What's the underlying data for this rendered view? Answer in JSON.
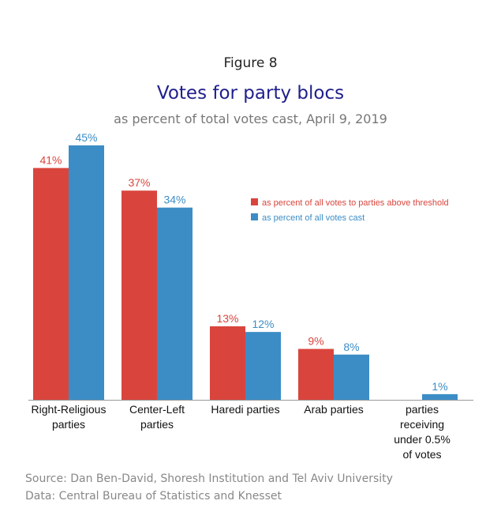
{
  "figure_label": "Figure 8",
  "chart_data": {
    "type": "bar",
    "title": "Votes for party blocs",
    "subtitle": "as percent of total votes cast, April 9, 2019",
    "categories": [
      [
        "Right-Religious",
        "parties"
      ],
      [
        "Center-Left",
        "parties"
      ],
      [
        "Haredi parties"
      ],
      [
        "Arab parties"
      ],
      [
        "parties",
        "receiving",
        "under 0.5%",
        "of votes"
      ]
    ],
    "series": [
      {
        "name": "as percent of all votes to parties above threshold",
        "color": "#d9453d",
        "values": [
          41,
          37,
          13,
          9,
          null
        ],
        "labels": [
          "41%",
          "37%",
          "13%",
          "9%",
          ""
        ]
      },
      {
        "name": "as percent of all votes cast",
        "color": "#3c8dc5",
        "values": [
          45,
          34,
          12,
          8,
          1
        ],
        "labels": [
          "45%",
          "34%",
          "12%",
          "8%",
          "1%"
        ]
      }
    ],
    "ylim": [
      0,
      45
    ],
    "grid": false,
    "legend": "right"
  },
  "source": {
    "line1": "Source: Dan Ben-David, Shoresh Institution and Tel Aviv University",
    "line2": "Data: Central Bureau of Statistics and Knesset"
  }
}
